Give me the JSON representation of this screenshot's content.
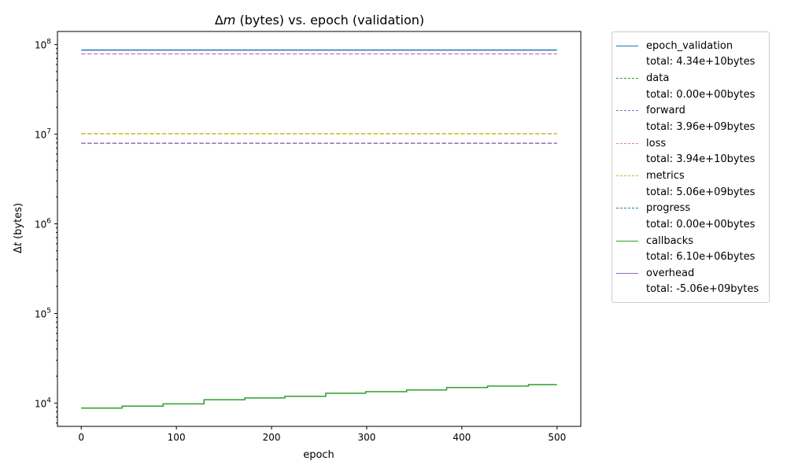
{
  "chart_data": {
    "type": "line",
    "title": "Δm (bytes) vs. epoch (validation)",
    "title_parts": {
      "delta": "Δ",
      "var": "m",
      "rest": " (bytes) vs. epoch (validation)"
    },
    "xlabel": "epoch",
    "ylabel": "Δt (bytes)",
    "ylabel_parts": {
      "delta": "Δ",
      "var": "t",
      "rest": " (bytes)"
    },
    "xlim": [
      -25,
      525
    ],
    "ylim": [
      5500,
      140000000
    ],
    "yscale": "log",
    "xticks": [
      0,
      100,
      200,
      300,
      400,
      500
    ],
    "yticks": [
      {
        "value": 10000,
        "base": "10",
        "exp": "4"
      },
      {
        "value": 100000,
        "base": "10",
        "exp": "5"
      },
      {
        "value": 1000000,
        "base": "10",
        "exp": "6"
      },
      {
        "value": 10000000,
        "base": "10",
        "exp": "7"
      },
      {
        "value": 100000000,
        "base": "10",
        "exp": "8"
      }
    ],
    "grid": false,
    "legend_position": "outside-right",
    "series": [
      {
        "name": "epoch_validation",
        "total": "total: 4.34e+10bytes",
        "color": "#1f77b4",
        "style": "solid",
        "points": [
          [
            0,
            86800000
          ],
          [
            500,
            86800000
          ]
        ]
      },
      {
        "name": "data",
        "total": "total: 0.00e+00bytes",
        "color": "#2ca02c",
        "style": "dashed",
        "points": []
      },
      {
        "name": "forward",
        "total": "total: 3.96e+09bytes",
        "color": "#9467bd",
        "style": "dashed",
        "points": [
          [
            0,
            7920000
          ],
          [
            500,
            7920000
          ]
        ]
      },
      {
        "name": "loss",
        "total": "total: 3.94e+10bytes",
        "color": "#e377c2",
        "style": "dashed",
        "points": [
          [
            0,
            78800000
          ],
          [
            500,
            78800000
          ]
        ]
      },
      {
        "name": "metrics",
        "total": "total: 5.06e+09bytes",
        "color": "#bcbd22",
        "style": "dashed",
        "points": [
          [
            0,
            10120000
          ],
          [
            500,
            10120000
          ]
        ]
      },
      {
        "name": "progress",
        "total": "total: 0.00e+00bytes",
        "color": "#1f77b4",
        "style": "dashed",
        "points": []
      },
      {
        "name": "callbacks",
        "total": "total: 6.10e+06bytes",
        "color": "#2ca02c",
        "style": "solid",
        "steps": [
          [
            0,
            8800
          ],
          [
            43,
            9250
          ],
          [
            86,
            9800
          ],
          [
            129,
            10900
          ],
          [
            172,
            11400
          ],
          [
            214,
            11900
          ],
          [
            257,
            12900
          ],
          [
            299,
            13400
          ],
          [
            342,
            14000
          ],
          [
            384,
            14900
          ],
          [
            427,
            15500
          ],
          [
            470,
            16100
          ],
          [
            500,
            16100
          ]
        ]
      },
      {
        "name": "overhead",
        "total": "total: -5.06e+09bytes",
        "color": "#9467bd",
        "style": "solid",
        "points": []
      }
    ]
  }
}
